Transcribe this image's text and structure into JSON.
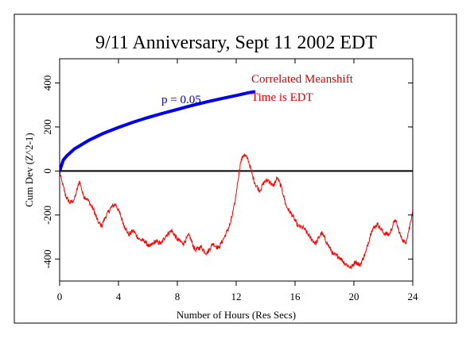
{
  "chart_data": {
    "type": "line",
    "title": "9/11 Anniversary, Sept 11 2002 EDT",
    "xlabel": "Number of Hours (Res Secs)",
    "ylabel": "Cum Dev (Z^2-1)",
    "xlim": [
      0,
      24
    ],
    "ylim": [
      -500,
      510
    ],
    "x_ticks": [
      0,
      4,
      8,
      12,
      16,
      20,
      24
    ],
    "y_ticks": [
      -400,
      -200,
      0,
      200,
      400
    ],
    "x_tick_labels": [
      "0",
      "4",
      "8",
      "12",
      "16",
      "20",
      "24"
    ],
    "y_tick_labels": [
      "-400",
      "-200",
      "0",
      "200",
      "400"
    ],
    "grid": false,
    "annotations": {
      "probability": "p = 0.05",
      "legend_line1": "Correlated Meanshift",
      "legend_line2": "Time is EDT"
    },
    "colors": {
      "cumdev": "#ff0000",
      "envelope": "#0000ee",
      "zero_line": "#000000",
      "probability_text": "#0000cc",
      "legend_text": "#dd0000"
    },
    "series": [
      {
        "role": "cumdev",
        "x": [
          0,
          0.2,
          0.45,
          0.7,
          1.0,
          1.35,
          1.6,
          1.9,
          2.3,
          2.6,
          2.85,
          3.1,
          3.5,
          3.8,
          4.1,
          4.4,
          4.7,
          5.0,
          5.4,
          5.8,
          6.1,
          6.5,
          6.9,
          7.2,
          7.6,
          8.0,
          8.4,
          8.8,
          9.2,
          9.6,
          10.0,
          10.4,
          10.8,
          11.2,
          11.6,
          11.9,
          12.1,
          12.3,
          12.5,
          12.8,
          13.1,
          13.3,
          13.6,
          13.9,
          14.2,
          14.5,
          14.8,
          15.1,
          15.4,
          15.8,
          16.2,
          16.6,
          17.0,
          17.4,
          17.8,
          18.2,
          18.6,
          19.0,
          19.4,
          19.8,
          20.1,
          20.4,
          20.8,
          21.2,
          21.6,
          22.0,
          22.4,
          22.8,
          23.2,
          23.5,
          23.8,
          24.0
        ],
        "y": [
          -5,
          -60,
          -120,
          -145,
          -130,
          -45,
          -110,
          -130,
          -175,
          -230,
          -250,
          -210,
          -165,
          -150,
          -195,
          -250,
          -290,
          -270,
          -310,
          -320,
          -345,
          -320,
          -330,
          -295,
          -270,
          -310,
          -330,
          -290,
          -360,
          -345,
          -375,
          -330,
          -350,
          -300,
          -240,
          -150,
          -50,
          40,
          75,
          55,
          -20,
          -60,
          -90,
          -50,
          -40,
          -70,
          -30,
          -80,
          -160,
          -200,
          -250,
          -260,
          -300,
          -330,
          -280,
          -330,
          -380,
          -390,
          -420,
          -440,
          -410,
          -430,
          -370,
          -270,
          -240,
          -280,
          -290,
          -220,
          -300,
          -330,
          -250,
          -175
        ]
      },
      {
        "role": "envelope",
        "x": [
          0,
          0.25,
          0.5,
          1,
          2,
          3,
          4,
          5,
          6,
          7,
          8,
          9,
          10,
          11,
          12,
          12.8,
          13.2
        ],
        "y": [
          0,
          50,
          70,
          100,
          140,
          172,
          198,
          222,
          243,
          262,
          280,
          298,
          314,
          329,
          343,
          355,
          360
        ]
      }
    ]
  }
}
